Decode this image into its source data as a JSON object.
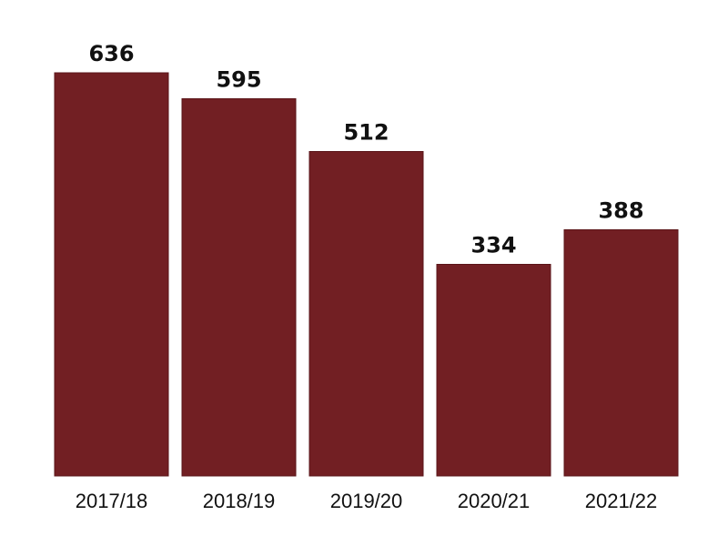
{
  "chart_data": {
    "type": "bar",
    "categories": [
      "2017/18",
      "2018/19",
      "2019/20",
      "2020/21",
      "2021/22"
    ],
    "values": [
      636,
      595,
      512,
      334,
      388
    ],
    "title": "",
    "xlabel": "",
    "ylabel": "",
    "ylim": [
      0,
      636
    ],
    "grid": false,
    "legend": "none",
    "bar_color": "#721f23",
    "bar_edge_color": "#5a1418"
  }
}
